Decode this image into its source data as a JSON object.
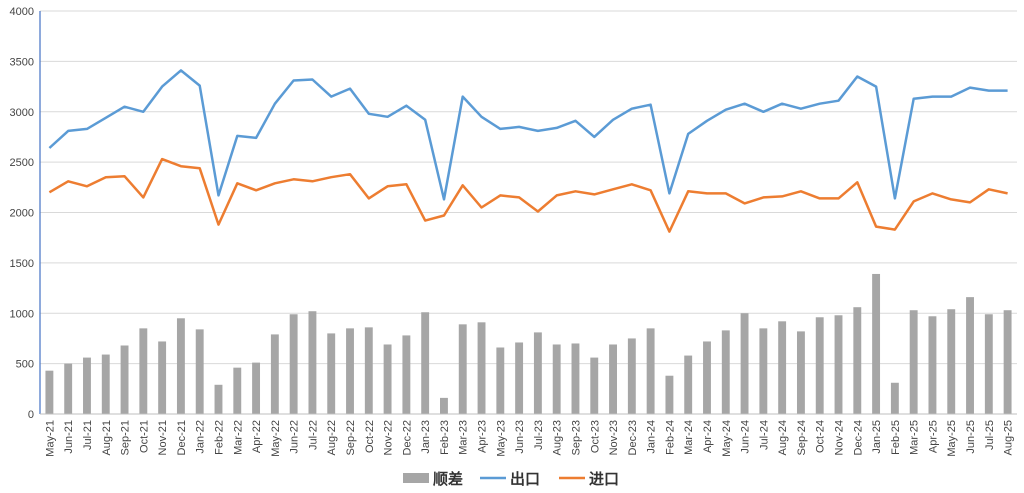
{
  "chart_data": {
    "type": "bar",
    "categories": [
      "May-21",
      "Jun-21",
      "Jul-21",
      "Aug-21",
      "Sep-21",
      "Oct-21",
      "Nov-21",
      "Dec-21",
      "Jan-22",
      "Feb-22",
      "Mar-22",
      "Apr-22",
      "May-22",
      "Jun-22",
      "Jul-22",
      "Aug-22",
      "Sep-22",
      "Oct-22",
      "Nov-22",
      "Dec-22",
      "Jan-23",
      "Feb-23",
      "Mar-23",
      "Apr-23",
      "May-23",
      "Jun-23",
      "Jul-23",
      "Aug-23",
      "Sep-23",
      "Oct-23",
      "Nov-23",
      "Dec-23",
      "Jan-24",
      "Feb-24",
      "Mar-24",
      "Apr-24",
      "May-24",
      "Jun-24",
      "Jul-24",
      "Aug-24",
      "Sep-24",
      "Oct-24",
      "Nov-24",
      "Dec-24",
      "Jan-25",
      "Feb-25",
      "Mar-25",
      "Apr-25",
      "May-25",
      "Jun-25",
      "Jul-25",
      "Aug-25"
    ],
    "series": [
      {
        "name": "顺差",
        "type": "bar",
        "color": "#a6a6a6",
        "values": [
          430,
          500,
          560,
          590,
          680,
          850,
          720,
          950,
          840,
          290,
          460,
          510,
          790,
          990,
          1020,
          800,
          850,
          860,
          690,
          780,
          1010,
          160,
          890,
          910,
          660,
          710,
          810,
          690,
          700,
          560,
          690,
          750,
          850,
          380,
          580,
          720,
          830,
          1000,
          850,
          920,
          820,
          960,
          980,
          1060,
          1390,
          310,
          1030,
          970,
          1040,
          1160,
          990,
          1030
        ]
      },
      {
        "name": "出口",
        "type": "line",
        "color": "#5b9bd5",
        "values": [
          2640,
          2810,
          2830,
          2940,
          3050,
          3000,
          3250,
          3410,
          3260,
          2170,
          2760,
          2740,
          3080,
          3310,
          3320,
          3150,
          3230,
          2980,
          2950,
          3060,
          2920,
          2130,
          3150,
          2950,
          2830,
          2850,
          2810,
          2840,
          2910,
          2750,
          2920,
          3030,
          3070,
          2190,
          2780,
          2910,
          3020,
          3080,
          3000,
          3080,
          3030,
          3080,
          3110,
          3350,
          3250,
          2140,
          3130,
          3150,
          3150,
          3240,
          3210,
          3210
        ]
      },
      {
        "name": "进口",
        "type": "line",
        "color": "#ed7d31",
        "values": [
          2200,
          2310,
          2260,
          2350,
          2360,
          2150,
          2530,
          2460,
          2440,
          1880,
          2290,
          2220,
          2290,
          2330,
          2310,
          2350,
          2380,
          2140,
          2260,
          2280,
          1920,
          1970,
          2270,
          2050,
          2170,
          2150,
          2010,
          2170,
          2210,
          2180,
          2230,
          2280,
          2220,
          1810,
          2210,
          2190,
          2190,
          2090,
          2150,
          2160,
          2210,
          2140,
          2140,
          2300,
          1860,
          1830,
          2110,
          2190,
          2130,
          2100,
          2230,
          2190
        ]
      }
    ],
    "title": "",
    "xlabel": "",
    "ylabel": "",
    "ylim": [
      0,
      4000
    ],
    "yticks": [
      "0",
      "500",
      "1000",
      "1500",
      "2000",
      "2500",
      "3000",
      "3500",
      "4000"
    ],
    "grid": "horizontal",
    "legend": "bottom-center",
    "gridColor": "#d9d9d9",
    "axisColor": "#4472c4"
  }
}
